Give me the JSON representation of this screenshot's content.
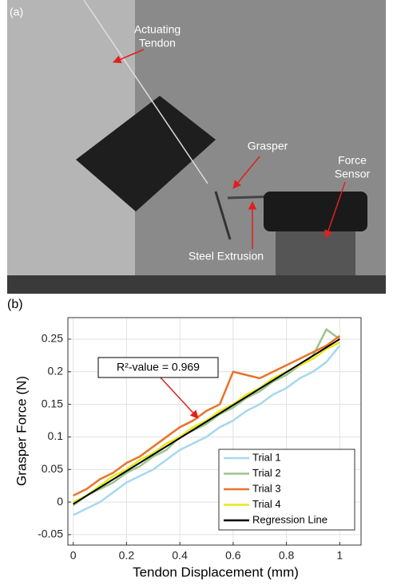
{
  "photo": {
    "panel_label": "(a)",
    "annotations": [
      {
        "lines": [
          "Actuating",
          "Tendon"
        ]
      },
      {
        "lines": [
          "Grasper"
        ]
      },
      {
        "lines": [
          "Force",
          "Sensor"
        ]
      },
      {
        "lines": [
          "Steel Extrusion"
        ]
      }
    ]
  },
  "chart_data": {
    "type": "line",
    "panel_label": "(b)",
    "x_label": "Tendon Displacement (mm)",
    "y_label": "Grasper Force (N)",
    "annotation": "R²-value = 0.969",
    "x": [
      0,
      0.05,
      0.1,
      0.15,
      0.2,
      0.25,
      0.3,
      0.35,
      0.4,
      0.45,
      0.5,
      0.55,
      0.6,
      0.65,
      0.7,
      0.75,
      0.8,
      0.85,
      0.9,
      0.95,
      1
    ],
    "series": [
      {
        "name": "Trial 1",
        "color": "#a6d8ee",
        "values": [
          -0.02,
          -0.01,
          0.0,
          0.015,
          0.03,
          0.04,
          0.05,
          0.065,
          0.08,
          0.09,
          0.1,
          0.115,
          0.125,
          0.14,
          0.15,
          0.165,
          0.175,
          0.19,
          0.2,
          0.215,
          0.24
        ]
      },
      {
        "name": "Trial 2",
        "color": "#9bc38b",
        "values": [
          -0.005,
          0.01,
          0.02,
          0.03,
          0.045,
          0.055,
          0.07,
          0.08,
          0.1,
          0.11,
          0.12,
          0.135,
          0.145,
          0.16,
          0.17,
          0.185,
          0.195,
          0.21,
          0.225,
          0.265,
          0.25
        ]
      },
      {
        "name": "Trial 3",
        "color": "#e8732a",
        "values": [
          0.01,
          0.02,
          0.035,
          0.045,
          0.06,
          0.07,
          0.085,
          0.1,
          0.115,
          0.125,
          0.14,
          0.15,
          0.2,
          0.195,
          0.19,
          0.2,
          0.21,
          0.22,
          0.23,
          0.24,
          0.255
        ]
      },
      {
        "name": "Trial 4",
        "color": "#e8e81a",
        "values": [
          0,
          0.01,
          0.025,
          0.04,
          0.05,
          0.065,
          0.075,
          0.09,
          0.1,
          0.115,
          0.125,
          0.14,
          0.15,
          0.165,
          0.175,
          0.19,
          0.2,
          0.21,
          0.22,
          0.235,
          0.245
        ]
      },
      {
        "name": "Regression Line",
        "color": "#000000",
        "x": [
          0,
          1
        ],
        "values": [
          -0.003,
          0.25
        ]
      }
    ],
    "xlim": [
      -0.02,
      1.08
    ],
    "xticks": [
      0,
      0.2,
      0.4,
      0.6,
      0.8,
      1
    ],
    "ylim": [
      -0.066,
      0.283
    ],
    "yticks": [
      -0.05,
      0,
      0.05,
      0.1,
      0.15,
      0.2,
      0.25
    ],
    "grid": true,
    "legend": "lower right"
  }
}
